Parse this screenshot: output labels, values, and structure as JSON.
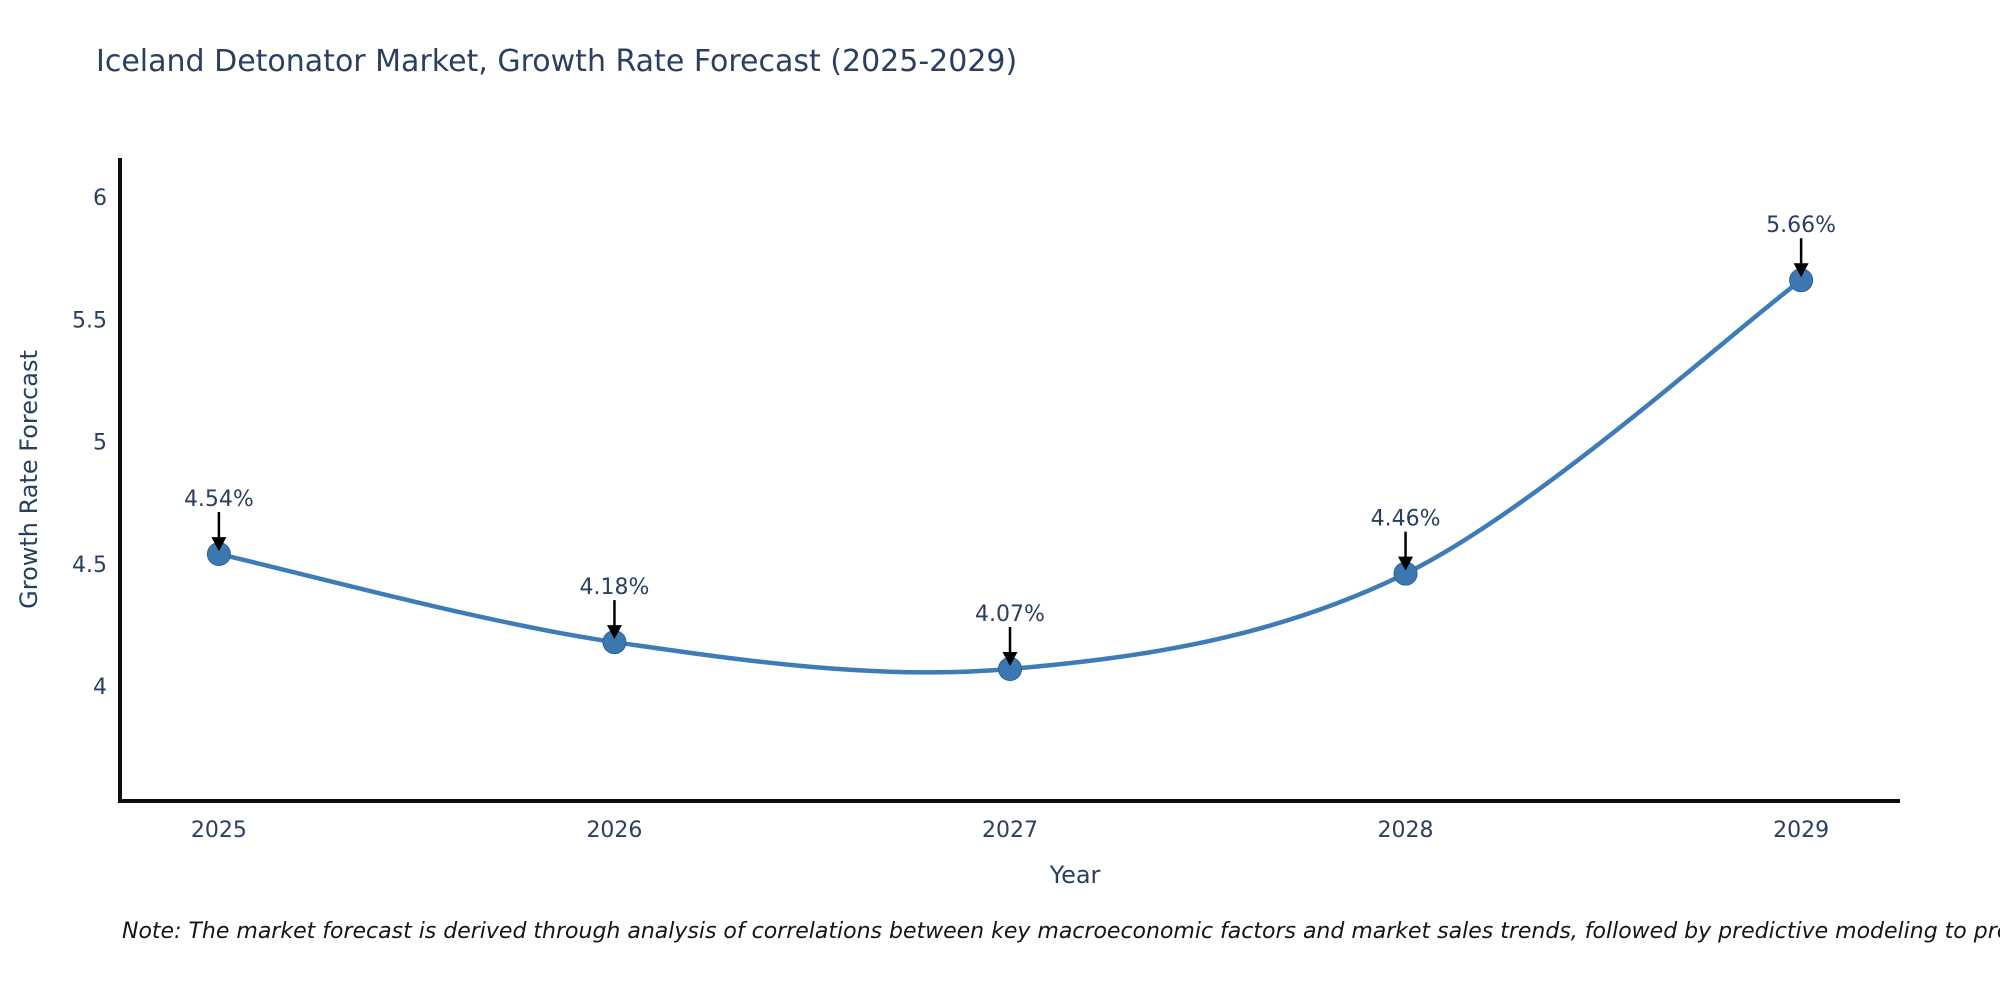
{
  "page": {
    "background": "#ffffff"
  },
  "chart_data": {
    "type": "line",
    "title": "Iceland Detonator Market, Growth Rate Forecast (2025-2029)",
    "x": [
      2025,
      2026,
      2027,
      2028,
      2029
    ],
    "xtick_labels": [
      "2025",
      "2026",
      "2027",
      "2028",
      "2029"
    ],
    "series": [
      {
        "name": "Growth Rate Forecast",
        "values": [
          4.54,
          4.18,
          4.07,
          4.46,
          5.66
        ],
        "point_labels": [
          "4.54%",
          "4.18%",
          "4.07%",
          "4.46%",
          "5.66%"
        ]
      }
    ],
    "xlabel": "Year",
    "ylabel": "Growth Rate Forecast",
    "yticks": [
      4,
      4.5,
      5,
      5.5,
      6
    ],
    "ytick_labels": [
      "4",
      "4.5",
      "5",
      "5.5",
      "6"
    ],
    "ylim": [
      3.53,
      6.16
    ],
    "xlim": [
      2024.75,
      2029.25
    ],
    "grid": false,
    "legend_position": "none",
    "line_shape": "spline",
    "annotation_style": "value label with downward black arrow above each data point",
    "colors": {
      "line": "#3e7cb7",
      "marker": "#3c77b0",
      "marker_outline": "#2d6195",
      "axis": "#0d0d0d",
      "text": "#2a3f5f",
      "annotation_arrow": "#000000",
      "background": "#ffffff"
    }
  },
  "note": {
    "text": "Note: The market forecast is derived through analysis of correlations between key macroeconomic factors and market sales trends, followed by predictive modeling to project future sales"
  }
}
